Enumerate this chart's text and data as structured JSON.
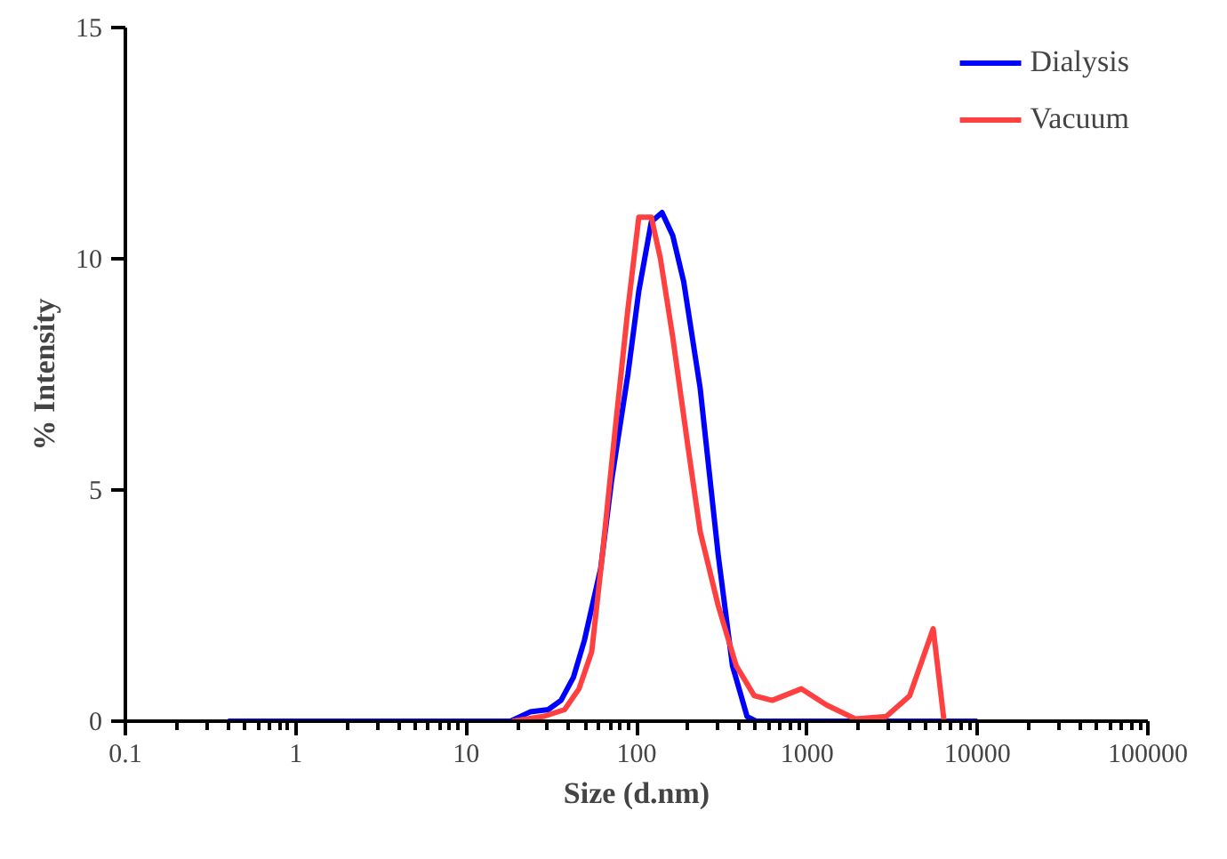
{
  "chart_data": {
    "type": "line",
    "xlabel": "Size (d.nm)",
    "ylabel": "% Intensity",
    "log": "x",
    "xlim": [
      0.1,
      100000
    ],
    "xticks": [
      0.1,
      1,
      10,
      100,
      1000,
      10000,
      100000
    ],
    "ylim": [
      0,
      15
    ],
    "yticks": [
      0,
      5,
      10,
      15
    ],
    "grid": false,
    "legend": "top right",
    "marker": "none",
    "line_style": "solid",
    "series": [
      {
        "name": "Dialysis",
        "color": "#0000ff",
        "x": [
          0.4,
          18.2,
          23.7,
          30.3,
          36,
          42.6,
          49.4,
          61.5,
          71.3,
          88.9,
          103,
          122,
          141,
          163,
          189,
          236,
          301,
          365,
          445,
          502,
          10000
        ],
        "values": [
          0,
          0,
          0.2,
          0.25,
          0.45,
          0.95,
          1.75,
          3.3,
          5.2,
          7.5,
          9.3,
          10.8,
          11.0,
          10.5,
          9.5,
          7.2,
          3.6,
          1.2,
          0.1,
          0,
          0
        ]
      },
      {
        "name": "Vacuum",
        "color": "#ff4040",
        "x": [
          18.6,
          28.2,
          37.8,
          45.9,
          54.5,
          63,
          74.8,
          88.8,
          103,
          122,
          138,
          163,
          199,
          236,
          301,
          384,
          490,
          625,
          925,
          1300,
          1920,
          2915,
          4000,
          5500,
          6370
        ],
        "values": [
          0,
          0.1,
          0.25,
          0.7,
          1.5,
          3.6,
          6.3,
          8.9,
          10.9,
          10.9,
          10.0,
          8.3,
          6.0,
          4.1,
          2.5,
          1.2,
          0.55,
          0.45,
          0.7,
          0.35,
          0.05,
          0.1,
          0.55,
          2.0,
          0
        ]
      }
    ]
  }
}
